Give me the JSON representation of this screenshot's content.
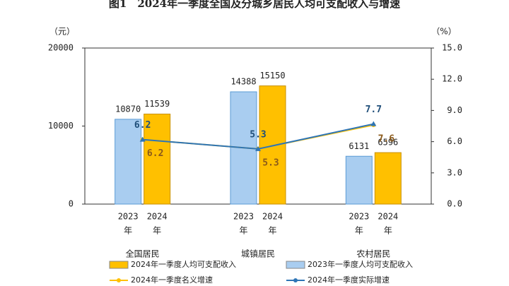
{
  "chart_data": {
    "type": "bar_line",
    "title": "图1　2024年一季度全国及分城乡居民人均可支配收入与增速",
    "y_unit": "（元）",
    "y2_unit": "（%）",
    "categories": [
      "全国居民",
      "城镇居民",
      "农村居民"
    ],
    "bar_sublabels": [
      [
        "2023",
        "年"
      ],
      [
        "2024",
        "年"
      ]
    ],
    "series": [
      {
        "name": "2023年一季度人均可支配收入",
        "kind": "bar",
        "color": "#a9cdf0",
        "values": [
          10870,
          14388,
          6131
        ]
      },
      {
        "name": "2024年一季度人均可支配收入",
        "kind": "bar",
        "color": "#ffc000",
        "values": [
          11539,
          15150,
          6596
        ]
      },
      {
        "name": "2024年一季度名义增速",
        "kind": "line",
        "axis": "y2",
        "color": "#ffc000",
        "values": [
          6.2,
          5.3,
          7.6
        ]
      },
      {
        "name": "2024年一季度实际增速",
        "kind": "line",
        "axis": "y2",
        "color": "#2e75b6",
        "values": [
          6.2,
          5.3,
          7.7
        ]
      }
    ],
    "ylim": [
      0,
      20000
    ],
    "yticks": [
      0,
      10000,
      20000
    ],
    "y2lim": [
      0,
      15
    ],
    "y2ticks": [
      {
        "value": 0,
        "label": "0.0"
      },
      {
        "value": 3,
        "label": "3.0"
      },
      {
        "value": 6,
        "label": "6.0"
      },
      {
        "value": 9,
        "label": "9.0"
      },
      {
        "value": 12,
        "label": "12.0"
      },
      {
        "value": 15,
        "label": "15.0"
      }
    ]
  }
}
